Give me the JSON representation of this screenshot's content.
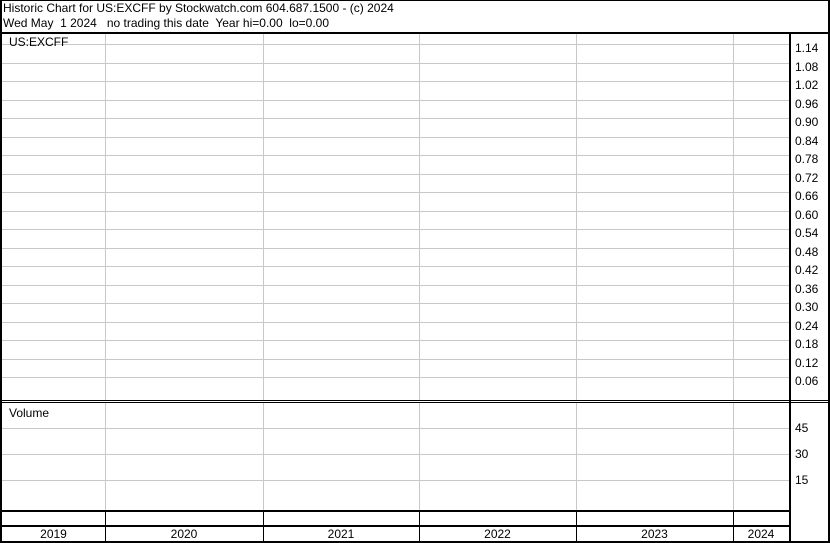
{
  "header": {
    "line1": "Historic Chart for US:EXCFF by Stockwatch.com 604.687.1500 - (c) 2024",
    "line2": "Wed May  1 2024   no trading this date  Year hi=0.00  lo=0.00"
  },
  "chart_data": [
    {
      "type": "line",
      "title": "US:EXCFF",
      "series": [],
      "x_tick_labels": [
        "2019",
        "2020",
        "2021",
        "2022",
        "2023",
        "2024"
      ],
      "y_tick_labels": [
        "1.14",
        "1.08",
        "1.02",
        "0.96",
        "0.90",
        "0.84",
        "0.78",
        "0.72",
        "0.66",
        "0.60",
        "0.54",
        "0.48",
        "0.42",
        "0.36",
        "0.30",
        "0.24",
        "0.18",
        "0.12",
        "0.06"
      ],
      "ylim": [
        0,
        1.17
      ],
      "y_axis_position": "right",
      "grid": true
    },
    {
      "type": "bar",
      "title": "Volume",
      "series": [],
      "y_tick_labels": [
        "45",
        "30",
        "15"
      ],
      "ylim": [
        0,
        60
      ],
      "y_axis_position": "right",
      "grid": true
    }
  ],
  "colors": {
    "grid": "#c8c8c8",
    "frame": "#000000",
    "background": "#ffffff"
  }
}
